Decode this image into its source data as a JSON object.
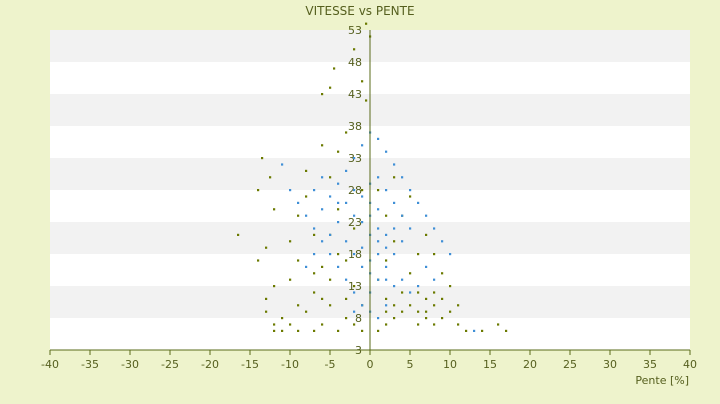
{
  "chart_data": {
    "type": "scatter",
    "title": "VITESSE vs PENTE",
    "xlabel": "Pente [%]",
    "ylabel": "",
    "xlim": [
      -40,
      40
    ],
    "ylim": [
      3,
      53
    ],
    "x_ticks": [
      "-40",
      "-35",
      "-30",
      "-25",
      "-20",
      "-15",
      "-10",
      "-5",
      "0",
      "5",
      "10",
      "15",
      "20",
      "25",
      "30",
      "35",
      "40"
    ],
    "y_ticks": [
      "3",
      "8",
      "13",
      "18",
      "23",
      "28",
      "33",
      "38",
      "43",
      "48",
      "53"
    ],
    "grid": "horizontal alternating bands",
    "legend": "none",
    "colors": {
      "background": "#eef3cc",
      "band_light": "#ffffff",
      "band_dark": "#f2f2f2",
      "axis": "#5a6b1a",
      "text": "#555f1e",
      "series_a": "#6b7a00",
      "series_b": "#3f8fd6"
    },
    "series": [
      {
        "color": "#6b7a00",
        "description_points": [
          [
            -16.5,
            21
          ],
          [
            -14,
            28
          ],
          [
            -13.5,
            33
          ],
          [
            -12.5,
            30
          ],
          [
            -12,
            25
          ],
          [
            -13,
            19
          ],
          [
            -14,
            17
          ],
          [
            -12,
            13
          ],
          [
            -13,
            9
          ],
          [
            -12,
            7
          ],
          [
            -11,
            8
          ],
          [
            -10,
            14
          ],
          [
            -9,
            17
          ],
          [
            -10,
            20
          ],
          [
            -9,
            24
          ],
          [
            -8,
            27
          ],
          [
            -8,
            31
          ],
          [
            -7,
            21
          ],
          [
            -7,
            15
          ],
          [
            -6,
            11
          ],
          [
            -8,
            9
          ],
          [
            -9,
            10
          ],
          [
            -10,
            7
          ],
          [
            -11,
            6
          ],
          [
            -6,
            7
          ],
          [
            -5,
            10
          ],
          [
            -5,
            14
          ],
          [
            -4,
            18
          ],
          [
            -5,
            21
          ],
          [
            -4,
            25
          ],
          [
            -5,
            30
          ],
          [
            -4,
            34
          ],
          [
            -6,
            35
          ],
          [
            -6,
            43
          ],
          [
            -5,
            44
          ],
          [
            -3,
            37
          ],
          [
            -4.5,
            47
          ],
          [
            -2,
            50
          ],
          [
            -1,
            45
          ],
          [
            -0.5,
            42
          ],
          [
            0,
            52
          ],
          [
            -0.5,
            54
          ],
          [
            -1,
            28
          ],
          [
            -2,
            22
          ],
          [
            -3,
            17
          ],
          [
            -2,
            13
          ],
          [
            -1,
            10
          ],
          [
            -3,
            8
          ],
          [
            -2,
            7
          ],
          [
            -1,
            6
          ],
          [
            1,
            6
          ],
          [
            2,
            7
          ],
          [
            3,
            8
          ],
          [
            2,
            11
          ],
          [
            1,
            14
          ],
          [
            2,
            17
          ],
          [
            3,
            20
          ],
          [
            2,
            24
          ],
          [
            1,
            28
          ],
          [
            4,
            12
          ],
          [
            5,
            10
          ],
          [
            6,
            9
          ],
          [
            7,
            8
          ],
          [
            6,
            7
          ],
          [
            8,
            7
          ],
          [
            9,
            8
          ],
          [
            10,
            9
          ],
          [
            11,
            7
          ],
          [
            12,
            6
          ],
          [
            14,
            6
          ],
          [
            16,
            7
          ],
          [
            17,
            6
          ],
          [
            5,
            15
          ],
          [
            6,
            18
          ],
          [
            7,
            21
          ],
          [
            8,
            18
          ],
          [
            9,
            15
          ],
          [
            10,
            13
          ],
          [
            11,
            10
          ],
          [
            4,
            24
          ],
          [
            5,
            27
          ],
          [
            3,
            30
          ],
          [
            6,
            12
          ],
          [
            7,
            11
          ],
          [
            8,
            10
          ],
          [
            9,
            11
          ],
          [
            -7,
            12
          ],
          [
            -6,
            16
          ],
          [
            -3,
            11
          ],
          [
            -4,
            6
          ],
          [
            -7,
            6
          ],
          [
            -9,
            6
          ],
          [
            -12,
            6
          ],
          [
            -13,
            11
          ],
          [
            4,
            9
          ],
          [
            3,
            10
          ],
          [
            2,
            9
          ],
          [
            7,
            9
          ],
          [
            8,
            12
          ]
        ]
      },
      {
        "color": "#3f8fd6",
        "description_points": [
          [
            -11,
            32
          ],
          [
            -10,
            28
          ],
          [
            -9,
            26
          ],
          [
            -8,
            24
          ],
          [
            -7,
            22
          ],
          [
            -6,
            20
          ],
          [
            -5,
            18
          ],
          [
            -4,
            16
          ],
          [
            -3,
            14
          ],
          [
            -2,
            12
          ],
          [
            -6,
            25
          ],
          [
            -5,
            27
          ],
          [
            -4,
            29
          ],
          [
            -3,
            31
          ],
          [
            -2,
            33
          ],
          [
            -1,
            35
          ],
          [
            0,
            37
          ],
          [
            1,
            36
          ],
          [
            2,
            34
          ],
          [
            3,
            32
          ],
          [
            4,
            30
          ],
          [
            5,
            28
          ],
          [
            6,
            26
          ],
          [
            7,
            24
          ],
          [
            8,
            22
          ],
          [
            9,
            20
          ],
          [
            10,
            18
          ],
          [
            5,
            22
          ],
          [
            4,
            20
          ],
          [
            3,
            18
          ],
          [
            2,
            16
          ],
          [
            1,
            14
          ],
          [
            0,
            12
          ],
          [
            -1,
            10
          ],
          [
            -2,
            9
          ],
          [
            0,
            9
          ],
          [
            1,
            8
          ],
          [
            2,
            10
          ],
          [
            3,
            13
          ],
          [
            -3,
            20
          ],
          [
            -2,
            24
          ],
          [
            -1,
            27
          ],
          [
            0,
            29
          ],
          [
            1,
            30
          ],
          [
            2,
            28
          ],
          [
            3,
            26
          ],
          [
            4,
            24
          ],
          [
            -4,
            23
          ],
          [
            -5,
            21
          ],
          [
            -7,
            18
          ],
          [
            -8,
            16
          ],
          [
            -7,
            28
          ],
          [
            -6,
            30
          ],
          [
            7,
            16
          ],
          [
            8,
            14
          ],
          [
            6,
            13
          ],
          [
            5,
            12
          ],
          [
            4,
            14
          ],
          [
            -1,
            19
          ],
          [
            0,
            21
          ],
          [
            1,
            22
          ],
          [
            2,
            21
          ],
          [
            -2,
            18
          ],
          [
            0,
            17
          ],
          [
            1,
            18
          ],
          [
            -1,
            23
          ],
          [
            0,
            24
          ],
          [
            1,
            25
          ],
          [
            2,
            19
          ],
          [
            3,
            22
          ],
          [
            -3,
            26
          ],
          [
            -2,
            28
          ],
          [
            -4,
            26
          ],
          [
            0,
            26
          ],
          [
            1,
            20
          ],
          [
            -1,
            16
          ],
          [
            0,
            15
          ],
          [
            2,
            14
          ],
          [
            13,
            6
          ]
        ]
      }
    ]
  }
}
